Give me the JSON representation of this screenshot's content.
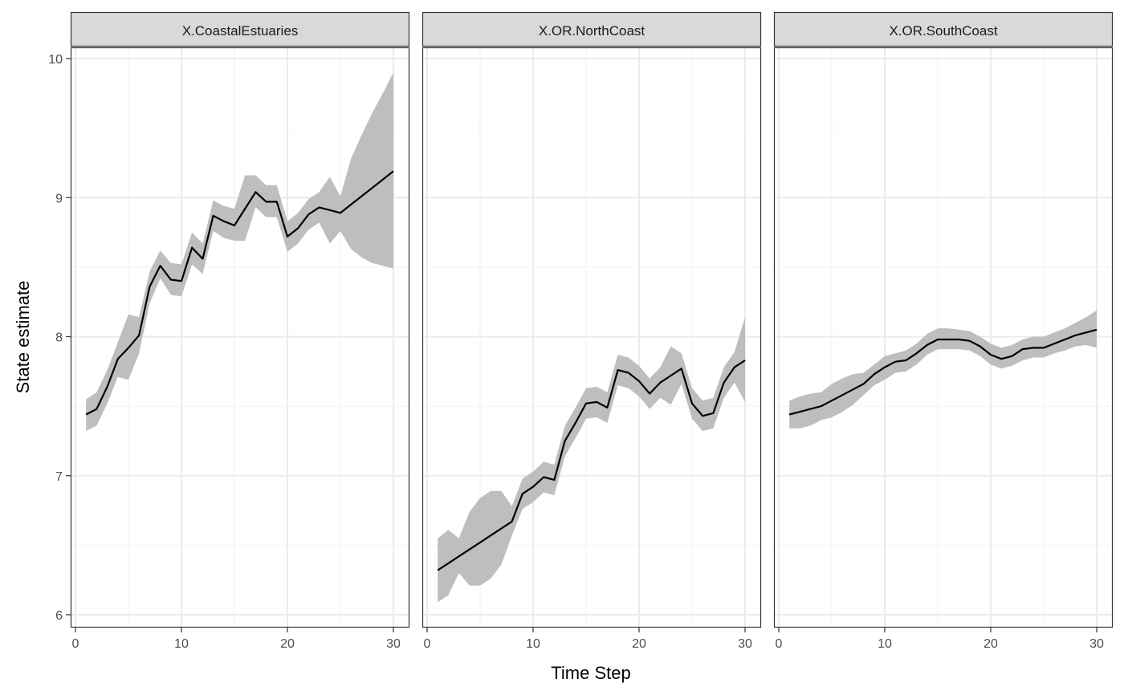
{
  "chart_data": {
    "type": "line",
    "layout": "faceted",
    "xlabel": "Time Step",
    "ylabel": "State estimate",
    "xlim": [
      0,
      30
    ],
    "ylim": [
      6,
      10
    ],
    "x_ticks": [
      0,
      10,
      20,
      30
    ],
    "y_ticks": [
      6,
      7,
      8,
      9,
      10
    ],
    "grid": true,
    "colors": {
      "line": "#000000",
      "ribbon": "#bebebe",
      "strip_fill": "#d9d9d9",
      "grid_major": "#ebebeb",
      "grid_minor": "#f2f2f2",
      "panel_border": "#333333"
    },
    "x": [
      1,
      2,
      3,
      4,
      5,
      6,
      7,
      8,
      9,
      10,
      11,
      12,
      13,
      14,
      15,
      16,
      17,
      18,
      19,
      20,
      21,
      22,
      23,
      24,
      25,
      26,
      27,
      28,
      29,
      30
    ],
    "panels": [
      {
        "name": "X.CoastalEstuaries",
        "estimate": [
          7.44,
          7.48,
          7.64,
          7.84,
          7.92,
          8.01,
          8.36,
          8.51,
          8.41,
          8.4,
          8.64,
          8.56,
          8.87,
          8.83,
          8.8,
          8.92,
          9.04,
          8.97,
          8.97,
          8.72,
          8.78,
          8.88,
          8.93,
          8.91,
          8.89,
          8.95,
          9.01,
          9.07,
          9.13,
          9.19
        ],
        "lower": [
          7.32,
          7.36,
          7.52,
          7.71,
          7.69,
          7.88,
          8.24,
          8.42,
          8.3,
          8.29,
          8.52,
          8.45,
          8.76,
          8.71,
          8.69,
          8.69,
          8.93,
          8.86,
          8.86,
          8.61,
          8.67,
          8.77,
          8.82,
          8.67,
          8.76,
          8.63,
          8.57,
          8.53,
          8.51,
          8.49
        ],
        "upper": [
          7.55,
          7.6,
          7.76,
          7.96,
          8.16,
          8.14,
          8.47,
          8.62,
          8.53,
          8.52,
          8.75,
          8.67,
          8.98,
          8.94,
          8.92,
          9.16,
          9.16,
          9.09,
          9.09,
          8.83,
          8.89,
          8.99,
          9.04,
          9.15,
          9.01,
          9.28,
          9.45,
          9.61,
          9.75,
          9.9
        ]
      },
      {
        "name": "X.OR.NorthCoast",
        "estimate": [
          6.32,
          6.37,
          6.42,
          6.47,
          6.52,
          6.57,
          6.62,
          6.67,
          6.87,
          6.92,
          6.99,
          6.97,
          7.25,
          7.38,
          7.52,
          7.53,
          7.49,
          7.76,
          7.74,
          7.68,
          7.59,
          7.67,
          7.72,
          7.77,
          7.52,
          7.43,
          7.45,
          7.67,
          7.78,
          7.83
        ],
        "lower": [
          6.09,
          6.14,
          6.3,
          6.21,
          6.21,
          6.26,
          6.36,
          6.57,
          6.76,
          6.81,
          6.88,
          6.86,
          7.14,
          7.27,
          7.41,
          7.42,
          7.38,
          7.65,
          7.63,
          7.57,
          7.48,
          7.56,
          7.51,
          7.66,
          7.41,
          7.32,
          7.34,
          7.56,
          7.67,
          7.53
        ],
        "upper": [
          6.55,
          6.61,
          6.55,
          6.74,
          6.84,
          6.89,
          6.89,
          6.78,
          6.98,
          7.03,
          7.1,
          7.08,
          7.36,
          7.49,
          7.63,
          7.64,
          7.6,
          7.87,
          7.85,
          7.79,
          7.7,
          7.78,
          7.93,
          7.88,
          7.63,
          7.54,
          7.56,
          7.78,
          7.89,
          8.14
        ]
      },
      {
        "name": "X.OR.SouthCoast",
        "estimate": [
          7.44,
          7.46,
          7.48,
          7.5,
          7.54,
          7.58,
          7.62,
          7.66,
          7.73,
          7.78,
          7.82,
          7.83,
          7.88,
          7.94,
          7.98,
          7.98,
          7.98,
          7.97,
          7.93,
          7.87,
          7.84,
          7.86,
          7.91,
          7.92,
          7.92,
          7.95,
          7.98,
          8.01,
          8.03,
          8.05
        ],
        "lower": [
          7.34,
          7.34,
          7.36,
          7.4,
          7.42,
          7.46,
          7.51,
          7.58,
          7.65,
          7.69,
          7.74,
          7.75,
          7.8,
          7.87,
          7.91,
          7.91,
          7.91,
          7.9,
          7.86,
          7.8,
          7.77,
          7.79,
          7.83,
          7.85,
          7.85,
          7.88,
          7.9,
          7.93,
          7.94,
          7.92
        ],
        "upper": [
          7.54,
          7.57,
          7.59,
          7.6,
          7.66,
          7.7,
          7.73,
          7.74,
          7.8,
          7.86,
          7.88,
          7.9,
          7.95,
          8.02,
          8.06,
          8.06,
          8.05,
          8.04,
          8.0,
          7.95,
          7.92,
          7.94,
          7.98,
          8.0,
          8.0,
          8.03,
          8.06,
          8.1,
          8.14,
          8.19
        ]
      }
    ]
  }
}
